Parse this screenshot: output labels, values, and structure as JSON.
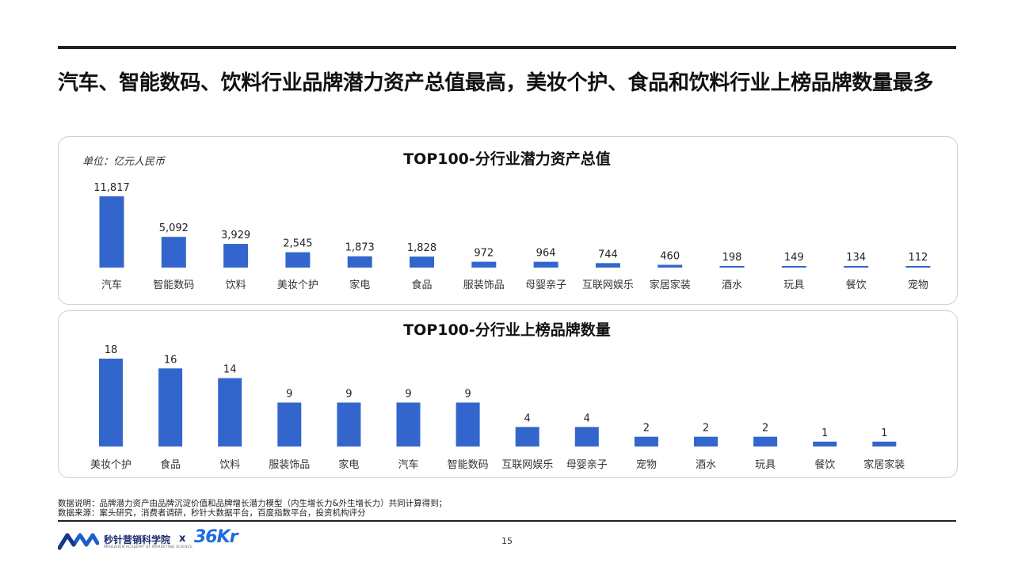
{
  "headline": "汽车、智能数码、饮料行业品牌潜力资产总值最高，美妆个护、食品和饮料行业上榜品牌数量最多",
  "chart_data": [
    {
      "type": "bar",
      "title": "TOP100-分行业潜力资产总值",
      "unit_label": "单位：亿元人民币",
      "categories": [
        "汽车",
        "智能数码",
        "饮料",
        "美妆个护",
        "家电",
        "食品",
        "服装饰品",
        "母婴亲子",
        "互联网娱乐",
        "家居家装",
        "酒水",
        "玩具",
        "餐饮",
        "宠物"
      ],
      "values": [
        11817,
        5092,
        3929,
        2545,
        1873,
        1828,
        972,
        964,
        744,
        460,
        198,
        149,
        134,
        112
      ],
      "value_labels": [
        "11,817",
        "5,092",
        "3,929",
        "2,545",
        "1,873",
        "1,828",
        "972",
        "964",
        "744",
        "460",
        "198",
        "149",
        "134",
        "112"
      ],
      "ylim": [
        0,
        11817
      ],
      "color": "#3366CC",
      "grid": false
    },
    {
      "type": "bar",
      "title": "TOP100-分行业上榜品牌数量",
      "categories": [
        "美妆个护",
        "食品",
        "饮料",
        "服装饰品",
        "家电",
        "汽车",
        "智能数码",
        "互联网娱乐",
        "母婴亲子",
        "宠物",
        "酒水",
        "玩具",
        "餐饮",
        "家居家装"
      ],
      "values": [
        18,
        16,
        14,
        9,
        9,
        9,
        9,
        4,
        4,
        2,
        2,
        2,
        1,
        1
      ],
      "value_labels": [
        "18",
        "16",
        "14",
        "9",
        "9",
        "9",
        "9",
        "4",
        "4",
        "2",
        "2",
        "2",
        "1",
        "1"
      ],
      "ylim": [
        0,
        18
      ],
      "color": "#3366CC",
      "grid": false
    }
  ],
  "notes": [
    "数据说明：品牌潜力资产由品牌沉淀价值和品牌增长潜力模型（内生增长力&外生增长力）共同计算得到；",
    "数据来源：案头研究，消费者调研，秒针大数据平台，百度指数平台，投资机构评分"
  ],
  "footer": {
    "org_name": "秒针营销科学院",
    "org_sub": "MIAOZHEN ACADEMY OF MARKETING SCIENCE",
    "times": "x",
    "partner": "36Kr",
    "logo_icon": "mz-wave-logo-icon"
  },
  "page_number": "15"
}
